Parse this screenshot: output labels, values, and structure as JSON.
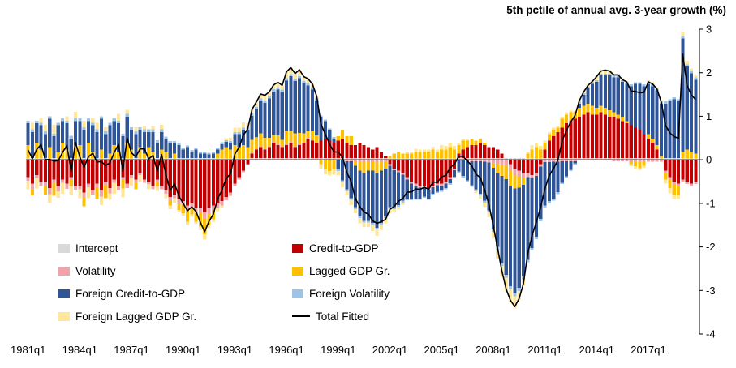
{
  "title": "5th pctile of annual avg. 3-year growth (%)",
  "legend": {
    "items": [
      {
        "label": "Intercept",
        "color": "#d9d9d9",
        "type": "fill"
      },
      {
        "label": "Volatility",
        "color": "#f2a2ab",
        "type": "fill"
      },
      {
        "label": "Foreign Credit-to-GDP",
        "color": "#2f5597",
        "type": "fill"
      },
      {
        "label": "Foreign Lagged GDP Gr.",
        "color": "#ffe699",
        "type": "fill"
      },
      {
        "label": "Credit-to-GDP",
        "color": "#c00000",
        "type": "fill"
      },
      {
        "label": "Lagged GDP Gr.",
        "color": "#ffc000",
        "type": "fill"
      },
      {
        "label": "Foreign Volatility",
        "color": "#9dc3e6",
        "type": "fill"
      },
      {
        "label": "Total Fitted",
        "color": "#000000",
        "type": "line"
      }
    ]
  },
  "chart_data": {
    "type": "stacked-bar-with-line",
    "title": "5th pctile of annual avg. 3-year growth (%)",
    "x_start": "1981q1",
    "x_end": "2019q4",
    "quarters": 156,
    "ylim": [
      -4,
      3
    ],
    "y_ticks": [
      3,
      2,
      1,
      0,
      -1,
      -2,
      -3,
      -4
    ],
    "x_tick_labels": [
      "1981q1",
      "1984q1",
      "1987q1",
      "1990q1",
      "1993q1",
      "1996q1",
      "1999q1",
      "2002q1",
      "2005q1",
      "2008q1",
      "2011q1",
      "2014q1",
      "2017q1"
    ],
    "x_tick_every": 12,
    "grid": false,
    "legend_position": "inside-lower-left",
    "line_series": {
      "name": "Total Fitted",
      "color": "#000000",
      "derived": "sum_of_components"
    },
    "series": [
      {
        "name": "Intercept",
        "color": "#d9d9d9",
        "constant": 0.04
      },
      {
        "name": "Credit-to-GDP",
        "color": "#c00000",
        "values": [
          -0.4,
          -0.55,
          -0.35,
          -0.5,
          -0.5,
          -0.65,
          -0.45,
          -0.6,
          -0.45,
          -0.55,
          -0.4,
          -0.6,
          -0.6,
          -0.75,
          -0.55,
          -0.7,
          -0.55,
          -0.7,
          -0.5,
          -0.65,
          -0.45,
          -0.6,
          -0.4,
          -0.55,
          -0.35,
          -0.45,
          -0.3,
          -0.45,
          -0.5,
          -0.6,
          -0.45,
          -0.6,
          -0.7,
          -0.85,
          -0.8,
          -0.9,
          -0.95,
          -1.05,
          -1.0,
          -1.1,
          -1.1,
          -1.2,
          -1.1,
          -1.05,
          -1.0,
          -0.95,
          -0.85,
          -0.75,
          -0.55,
          -0.4,
          -0.25,
          -0.1,
          0.1,
          0.2,
          0.25,
          0.2,
          0.25,
          0.35,
          0.3,
          0.25,
          0.3,
          0.35,
          0.25,
          0.3,
          0.35,
          0.45,
          0.4,
          0.35,
          0.4,
          0.45,
          0.4,
          0.35,
          0.4,
          0.45,
          0.35,
          0.3,
          0.3,
          0.35,
          0.3,
          0.25,
          0.2,
          0.25,
          0.15,
          0.05,
          -0.1,
          -0.2,
          -0.25,
          -0.3,
          -0.4,
          -0.5,
          -0.55,
          -0.6,
          -0.6,
          -0.65,
          -0.6,
          -0.55,
          -0.55,
          -0.5,
          -0.4,
          -0.2,
          0.1,
          0.2,
          0.25,
          0.3,
          0.3,
          0.35,
          0.3,
          0.25,
          0.25,
          0.2,
          0.1,
          0.0,
          -0.1,
          -0.2,
          -0.25,
          -0.3,
          -0.3,
          -0.35,
          -0.3,
          -0.1,
          0.2,
          0.4,
          0.5,
          0.6,
          0.7,
          0.8,
          0.85,
          0.9,
          0.95,
          1.0,
          1.05,
          1.0,
          1.0,
          1.05,
          1.0,
          0.95,
          0.95,
          0.9,
          0.85,
          0.8,
          0.75,
          0.7,
          0.65,
          0.55,
          0.45,
          0.35,
          0.2,
          0.0,
          -0.25,
          -0.4,
          -0.5,
          -0.55,
          -0.45,
          -0.5,
          -0.55,
          -0.5
        ]
      },
      {
        "name": "Volatility",
        "color": "#f2a2ab",
        "values": [
          -0.08,
          -0.12,
          -0.06,
          -0.1,
          -0.1,
          -0.14,
          -0.08,
          -0.12,
          -0.08,
          -0.12,
          -0.06,
          -0.1,
          -0.08,
          -0.12,
          -0.08,
          -0.1,
          -0.1,
          -0.14,
          -0.08,
          -0.12,
          -0.08,
          -0.1,
          -0.06,
          -0.1,
          -0.06,
          -0.08,
          -0.05,
          -0.08,
          -0.06,
          -0.08,
          -0.06,
          -0.08,
          -0.08,
          -0.1,
          -0.08,
          -0.1,
          -0.08,
          -0.12,
          -0.1,
          -0.12,
          -0.12,
          -0.16,
          -0.14,
          -0.12,
          -0.1,
          -0.1,
          -0.08,
          -0.08,
          -0.06,
          -0.05,
          -0.04,
          -0.03,
          0.02,
          0.02,
          0.02,
          0.02,
          0.02,
          0.03,
          0.02,
          0.02,
          0.03,
          0.03,
          0.02,
          0.03,
          0.02,
          0.02,
          0.02,
          0.02,
          0.0,
          -0.01,
          -0.01,
          -0.02,
          -0.02,
          -0.02,
          -0.03,
          -0.03,
          -0.04,
          -0.05,
          -0.05,
          -0.05,
          -0.05,
          -0.06,
          -0.05,
          -0.05,
          -0.04,
          -0.04,
          -0.04,
          -0.04,
          -0.05,
          -0.05,
          -0.04,
          -0.04,
          -0.04,
          -0.04,
          -0.03,
          -0.03,
          -0.05,
          -0.05,
          -0.04,
          -0.04,
          -0.02,
          -0.02,
          -0.02,
          -0.03,
          -0.03,
          -0.03,
          -0.04,
          -0.06,
          -0.08,
          -0.1,
          -0.12,
          -0.14,
          -0.15,
          -0.16,
          -0.14,
          -0.12,
          -0.1,
          -0.08,
          -0.07,
          -0.06,
          -0.05,
          -0.05,
          -0.04,
          -0.04,
          -0.03,
          -0.03,
          -0.03,
          -0.03,
          -0.02,
          -0.02,
          -0.02,
          -0.02,
          -0.02,
          -0.02,
          -0.02,
          -0.02,
          -0.03,
          -0.03,
          -0.03,
          -0.03,
          -0.05,
          -0.05,
          -0.04,
          -0.04,
          -0.04,
          -0.04,
          -0.04,
          -0.04,
          -0.05,
          -0.05,
          -0.06,
          -0.06,
          -0.06,
          -0.06,
          -0.06,
          -0.06
        ]
      },
      {
        "name": "Lagged GDP Gr.",
        "color": "#ffc000",
        "values": [
          0.3,
          -0.15,
          0.35,
          0.2,
          -0.2,
          0.25,
          -0.3,
          0.15,
          0.35,
          0.2,
          -0.15,
          0.3,
          0.3,
          -0.2,
          0.35,
          0.15,
          -0.25,
          0.2,
          -0.3,
          0.1,
          0.3,
          0.15,
          -0.2,
          0.35,
          0.2,
          -0.15,
          0.25,
          0.1,
          0.25,
          0.15,
          -0.1,
          0.2,
          0.15,
          -0.1,
          0.1,
          -0.15,
          -0.2,
          -0.25,
          -0.15,
          -0.2,
          -0.3,
          -0.35,
          -0.25,
          -0.2,
          0.1,
          0.2,
          0.25,
          0.2,
          0.3,
          0.25,
          0.3,
          0.25,
          0.3,
          0.25,
          0.3,
          0.25,
          0.2,
          0.15,
          0.2,
          0.15,
          0.3,
          0.25,
          0.3,
          0.25,
          0.2,
          0.15,
          0.2,
          0.15,
          -0.1,
          -0.2,
          -0.25,
          -0.2,
          0.1,
          0.2,
          0.15,
          0.2,
          -0.1,
          -0.2,
          -0.25,
          -0.2,
          -0.2,
          -0.25,
          -0.2,
          -0.15,
          0.05,
          0.1,
          0.15,
          0.1,
          0.1,
          0.1,
          0.15,
          0.15,
          0.15,
          0.15,
          0.2,
          0.15,
          0.2,
          0.2,
          0.25,
          0.2,
          0.2,
          0.2,
          0.15,
          0.15,
          0.1,
          0.1,
          0.05,
          0.0,
          -0.1,
          -0.2,
          -0.25,
          -0.3,
          -0.35,
          -0.3,
          -0.25,
          -0.15,
          0.1,
          0.2,
          0.25,
          0.2,
          0.15,
          0.15,
          0.15,
          0.1,
          0.2,
          0.2,
          0.2,
          0.15,
          0.2,
          0.2,
          0.2,
          0.2,
          0.15,
          0.15,
          0.15,
          0.15,
          0.1,
          0.1,
          0.1,
          0.05,
          -0.05,
          -0.1,
          -0.15,
          -0.1,
          0.1,
          0.1,
          0.1,
          0.05,
          -0.15,
          -0.2,
          -0.25,
          -0.2,
          0.15,
          0.2,
          0.15,
          0.1
        ]
      },
      {
        "name": "Foreign Credit-to-GDP",
        "color": "#2f5597",
        "values": [
          0.5,
          0.6,
          0.45,
          0.55,
          0.55,
          0.65,
          0.5,
          0.6,
          0.5,
          0.6,
          0.45,
          0.55,
          0.55,
          0.65,
          0.5,
          0.6,
          0.6,
          0.7,
          0.55,
          0.65,
          0.55,
          0.65,
          0.5,
          0.6,
          0.45,
          0.55,
          0.4,
          0.5,
          0.35,
          0.45,
          0.35,
          0.4,
          0.3,
          0.35,
          0.25,
          0.3,
          0.2,
          0.25,
          0.15,
          0.2,
          0.1,
          0.1,
          0.08,
          0.1,
          0.1,
          0.12,
          0.12,
          0.15,
          0.25,
          0.3,
          0.35,
          0.4,
          0.55,
          0.65,
          0.75,
          0.8,
          0.9,
          1.0,
          1.05,
          1.1,
          1.15,
          1.25,
          1.2,
          1.25,
          1.15,
          1.05,
          0.95,
          0.8,
          0.55,
          0.4,
          0.25,
          0.1,
          -0.2,
          -0.45,
          -0.65,
          -0.85,
          -0.95,
          -1.05,
          -1.1,
          -1.15,
          -1.2,
          -1.25,
          -1.2,
          -1.1,
          -0.95,
          -0.85,
          -0.75,
          -0.6,
          -0.45,
          -0.35,
          -0.3,
          -0.25,
          -0.2,
          -0.2,
          -0.15,
          -0.15,
          -0.1,
          -0.1,
          -0.1,
          -0.15,
          -0.25,
          -0.35,
          -0.45,
          -0.55,
          -0.65,
          -0.75,
          -0.9,
          -1.1,
          -1.4,
          -1.7,
          -2.0,
          -2.2,
          -2.3,
          -2.4,
          -2.3,
          -2.1,
          -1.9,
          -1.6,
          -1.4,
          -1.2,
          -1.0,
          -0.9,
          -0.85,
          -0.7,
          -0.5,
          -0.35,
          -0.2,
          -0.05,
          0.1,
          0.25,
          0.35,
          0.5,
          0.6,
          0.7,
          0.75,
          0.8,
          0.8,
          0.85,
          0.8,
          0.85,
          0.9,
          1.0,
          1.05,
          1.1,
          1.15,
          1.2,
          1.25,
          1.2,
          1.25,
          1.3,
          1.35,
          1.3,
          2.6,
          1.9,
          1.8,
          1.7
        ]
      },
      {
        "name": "Foreign Volatility",
        "color": "#9dc3e6",
        "values": [
          0.06,
          0.06,
          0.06,
          0.06,
          0.06,
          0.06,
          0.06,
          0.06,
          0.06,
          0.06,
          0.06,
          0.06,
          0.06,
          0.06,
          0.06,
          0.06,
          0.06,
          0.06,
          0.06,
          0.06,
          0.06,
          0.06,
          0.06,
          0.06,
          0.06,
          0.06,
          0.06,
          0.06,
          0.06,
          0.06,
          0.06,
          0.06,
          0.04,
          0.04,
          0.04,
          0.04,
          0.04,
          0.04,
          0.04,
          0.04,
          0.04,
          0.04,
          0.04,
          0.04,
          0.04,
          0.04,
          0.04,
          0.04,
          0.05,
          0.05,
          0.05,
          0.05,
          0.05,
          0.05,
          0.05,
          0.05,
          0.05,
          0.05,
          0.05,
          0.05,
          0.05,
          0.05,
          0.05,
          0.05,
          0.05,
          0.05,
          0.05,
          0.05,
          0.03,
          0.03,
          0.03,
          0.03,
          -0.04,
          -0.04,
          -0.04,
          -0.04,
          -0.04,
          -0.04,
          -0.04,
          -0.04,
          -0.04,
          -0.04,
          -0.04,
          -0.04,
          -0.04,
          -0.04,
          -0.04,
          -0.04,
          -0.03,
          -0.03,
          -0.03,
          -0.03,
          -0.03,
          -0.03,
          -0.03,
          -0.03,
          -0.03,
          -0.03,
          -0.03,
          -0.03,
          -0.04,
          -0.04,
          -0.04,
          -0.04,
          -0.04,
          -0.04,
          -0.04,
          -0.04,
          -0.07,
          -0.07,
          -0.07,
          -0.07,
          -0.07,
          -0.07,
          -0.07,
          -0.07,
          -0.05,
          -0.05,
          -0.05,
          -0.05,
          -0.05,
          -0.05,
          -0.05,
          -0.05,
          -0.03,
          -0.03,
          -0.03,
          -0.03,
          0.04,
          0.04,
          0.04,
          0.04,
          0.04,
          0.04,
          0.04,
          0.04,
          0.04,
          0.04,
          0.04,
          0.04,
          0.04,
          0.04,
          0.04,
          0.04,
          0.04,
          0.04,
          0.04,
          0.04,
          0.05,
          0.05,
          0.05,
          0.05,
          0.05,
          0.05,
          0.05,
          0.05
        ]
      },
      {
        "name": "Foreign Lagged GDP Gr.",
        "color": "#ffe699",
        "values": [
          -0.2,
          0.15,
          -0.25,
          0.1,
          0.15,
          -0.2,
          0.2,
          -0.15,
          -0.25,
          0.1,
          -0.2,
          0.15,
          -0.2,
          0.15,
          -0.25,
          0.1,
          0.15,
          -0.2,
          0.1,
          -0.15,
          -0.25,
          0.15,
          -0.2,
          0.1,
          -0.18,
          0.1,
          -0.15,
          0.08,
          -0.12,
          0.08,
          -0.1,
          0.1,
          -0.1,
          -0.08,
          -0.1,
          -0.06,
          -0.05,
          -0.08,
          -0.06,
          -0.05,
          -0.1,
          -0.12,
          -0.08,
          -0.06,
          -0.08,
          -0.05,
          0.05,
          0.08,
          0.1,
          0.1,
          0.12,
          0.1,
          0.1,
          0.12,
          0.1,
          0.12,
          0.1,
          0.1,
          0.12,
          0.1,
          0.15,
          0.15,
          0.12,
          0.15,
          0.1,
          0.1,
          0.08,
          0.05,
          -0.1,
          -0.12,
          -0.1,
          -0.12,
          -0.1,
          -0.12,
          -0.1,
          -0.12,
          -0.1,
          -0.12,
          -0.1,
          -0.1,
          -0.15,
          -0.15,
          -0.12,
          -0.12,
          -0.1,
          -0.08,
          -0.06,
          -0.05,
          0.05,
          0.05,
          0.06,
          0.05,
          0.05,
          0.05,
          0.06,
          0.05,
          0.1,
          0.08,
          0.1,
          0.08,
          0.05,
          0.05,
          0.04,
          0.0,
          -0.05,
          -0.08,
          -0.1,
          -0.12,
          -0.15,
          -0.2,
          -0.25,
          -0.3,
          -0.3,
          -0.28,
          -0.22,
          -0.15,
          0.05,
          0.1,
          0.1,
          0.08,
          0.05,
          0.05,
          0.05,
          0.04,
          0.05,
          0.05,
          0.04,
          0.04,
          0.05,
          0.05,
          0.05,
          0.04,
          0.1,
          0.08,
          0.1,
          0.08,
          0.05,
          0.05,
          0.04,
          0.04,
          -0.05,
          -0.06,
          -0.05,
          -0.04,
          0.05,
          0.05,
          0.04,
          0.04,
          -0.1,
          -0.12,
          -0.1,
          -0.08,
          0.1,
          0.08,
          0.06,
          0.05
        ]
      }
    ]
  }
}
